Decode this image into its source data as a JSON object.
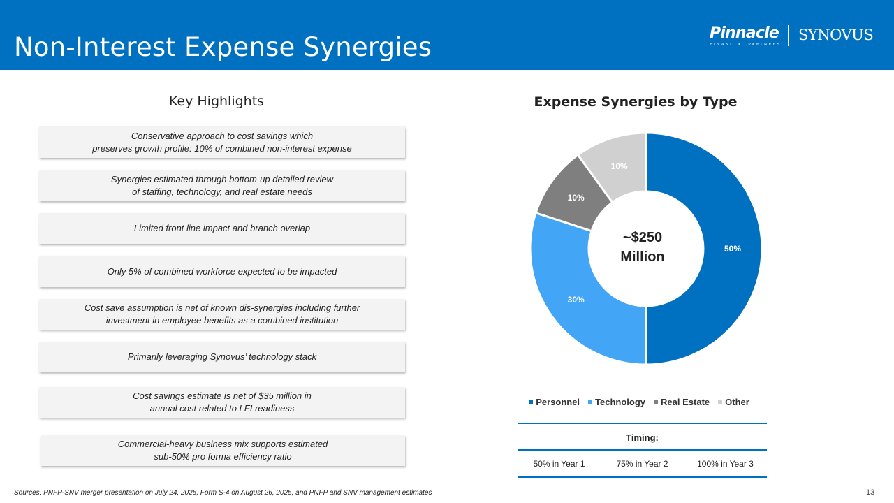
{
  "header": {
    "title": "Non-Interest Expense Synergies",
    "logo_pinnacle": "Pinnacle",
    "logo_pinnacle_sub": "FINANCIAL PARTNERS",
    "logo_synovus": "SYNOVUS",
    "bg_color": "#0070c0"
  },
  "highlights": {
    "title": "Key Highlights",
    "items": [
      "Conservative approach to cost savings which\npreserves growth profile: 10% of combined non-interest expense",
      "Synergies estimated through bottom-up detailed review\nof staffing, technology, and real estate needs",
      "Limited front line impact and branch overlap",
      "Only 5% of combined workforce expected to be impacted",
      "Cost save assumption is net of known dis-synergies including further\ninvestment in employee benefits as a combined institution",
      "Primarily leveraging Synovus’ technology stack",
      "Cost savings estimate is net of $35 million in\nannual cost related to LFI readiness",
      "Commercial-heavy business mix supports estimated\nsub-50% pro forma efficiency ratio"
    ]
  },
  "chart_data": {
    "type": "pie",
    "title": "Expense Synergies by Type",
    "center_label_line1": "~$250",
    "center_label_line2": "Million",
    "categories": [
      "Personnel",
      "Technology",
      "Real Estate",
      "Other"
    ],
    "values": [
      50,
      30,
      10,
      10
    ],
    "data_labels": [
      "50%",
      "30%",
      "10%",
      "10%"
    ],
    "colors": [
      "#0070c0",
      "#42a5f5",
      "#7f7f7f",
      "#d0d0d0"
    ],
    "legend_position": "bottom"
  },
  "timing": {
    "label": "Timing:",
    "values": [
      "50% in Year 1",
      "75% in Year 2",
      "100% in Year 3"
    ]
  },
  "footer": {
    "sources": "Sources: PNFP-SNV merger presentation on July 24, 2025, Form S-4 on August 26, 2025, and PNFP and SNV management estimates",
    "page_number": "13"
  }
}
